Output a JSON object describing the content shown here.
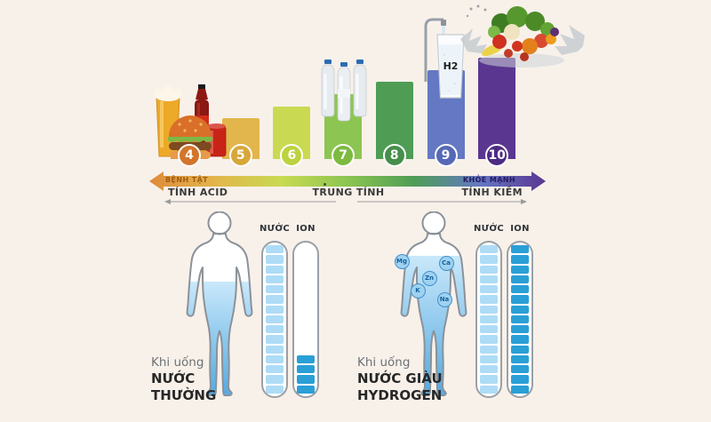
{
  "meta": {
    "background_color": "#f8f1ea"
  },
  "chart_data": {
    "type": "bar",
    "categories": [
      "4",
      "5",
      "6",
      "7",
      "8",
      "9",
      "10"
    ],
    "values": [
      4,
      5,
      6,
      7,
      8,
      9,
      10
    ],
    "bar_colors": [
      "#e08a3a",
      "#e2b64c",
      "#c9da52",
      "#8cc551",
      "#4f9d55",
      "#6478c3",
      "#5b3691"
    ],
    "badge_colors": [
      "#d3752a",
      "#d8a73a",
      "#bed23f",
      "#7cba40",
      "#458f4b",
      "#5569b6",
      "#4e2b82"
    ],
    "axis": {
      "left_end_label": "BỆNH TẬT",
      "right_end_label": "KHỎE MẠNH",
      "zone_labels": [
        "TÍNH ACID",
        "TRUNG TÍNH",
        "TÍNH KIỀM"
      ]
    },
    "legend_position": "none",
    "grid": false
  },
  "decorations": {
    "h2_glass_label": "H2"
  },
  "body_figures": [
    {
      "id": "normal-water",
      "caption_intro": "Khi uống",
      "caption_name_lines": [
        "NƯỚC",
        "THƯỜNG"
      ],
      "water_fill_pct": 62,
      "ions": [],
      "gauges": [
        {
          "label": "NƯỚC",
          "total_segments": 15,
          "filled_segments": 15,
          "segment_color": "#aedcf6"
        },
        {
          "label": "ION",
          "total_segments": 15,
          "filled_segments": 4,
          "segment_color": "#2a9fd6"
        }
      ]
    },
    {
      "id": "hydrogen-water",
      "caption_intro": "Khi uống",
      "caption_name_lines": [
        "NƯỚC GIÀU",
        "HYDROGEN"
      ],
      "water_fill_pct": 76,
      "ions": [
        "Mg",
        "Ca",
        "Zn",
        "K",
        "Na"
      ],
      "gauges": [
        {
          "label": "NƯỚC",
          "total_segments": 15,
          "filled_segments": 15,
          "segment_color": "#aedcf6"
        },
        {
          "label": "ION",
          "total_segments": 15,
          "filled_segments": 15,
          "segment_color": "#2a9fd6"
        }
      ]
    }
  ]
}
